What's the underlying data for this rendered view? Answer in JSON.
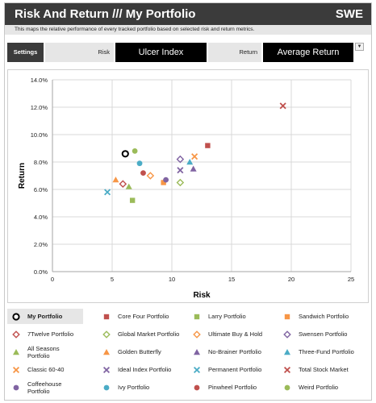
{
  "header": {
    "title": "Risk And Return /// My Portfolio",
    "region": "SWE"
  },
  "subtitle": "This maps the relative performance of every tracked portfolio based on selected risk and return metrics.",
  "controls": {
    "settings_label": "Settings",
    "risk_label": "Risk",
    "risk_value": "Ulcer Index",
    "return_label": "Return",
    "return_value": "Average Return",
    "dropdown_glyph": "▼"
  },
  "chart_data": {
    "type": "scatter",
    "xlabel": "Risk",
    "ylabel": "Return",
    "xlim": [
      0,
      25
    ],
    "ylim": [
      0,
      14
    ],
    "x_ticks": [
      0,
      5,
      10,
      15,
      20,
      25
    ],
    "x_tick_labels": [
      "0",
      "5",
      "10",
      "15",
      "20",
      "25"
    ],
    "y_ticks": [
      0,
      2,
      4,
      6,
      8,
      10,
      12,
      14
    ],
    "y_tick_labels": [
      "0.0%",
      "2.0%",
      "4.0%",
      "6.0%",
      "8.0%",
      "10.0%",
      "12.0%",
      "14.0%"
    ],
    "grid": true,
    "series": [
      {
        "name": "My Portfolio",
        "marker": "circle-open",
        "color": "#000000",
        "x": 6.1,
        "y": 8.6
      },
      {
        "name": "Core Four Portfolio",
        "marker": "square",
        "color": "#c0504d",
        "x": 13.0,
        "y": 9.2
      },
      {
        "name": "Larry Portfolio",
        "marker": "square",
        "color": "#9bbb59",
        "x": 6.7,
        "y": 5.2
      },
      {
        "name": "Sandwich Portfolio",
        "marker": "square",
        "color": "#f79646",
        "x": 9.3,
        "y": 6.5
      },
      {
        "name": "7Twelve Portfolio",
        "marker": "diamond-open",
        "color": "#c0504d",
        "x": 5.9,
        "y": 6.4
      },
      {
        "name": "Global Market Portfolio",
        "marker": "diamond-open",
        "color": "#9bbb59",
        "x": 10.7,
        "y": 6.5
      },
      {
        "name": "Ultimate Buy & Hold",
        "marker": "diamond-open",
        "color": "#f79646",
        "x": 8.2,
        "y": 7.0
      },
      {
        "name": "Swensen Portfolio",
        "marker": "diamond-open",
        "color": "#8064a2",
        "x": 10.7,
        "y": 8.2
      },
      {
        "name": "All Seasons Portfolio",
        "marker": "triangle",
        "color": "#9bbb59",
        "x": 6.4,
        "y": 6.2
      },
      {
        "name": "Golden Butterfly",
        "marker": "triangle",
        "color": "#f79646",
        "x": 5.3,
        "y": 6.7
      },
      {
        "name": "No-Brainer Portfolio",
        "marker": "triangle",
        "color": "#8064a2",
        "x": 11.8,
        "y": 7.5
      },
      {
        "name": "Three-Fund Portfolio",
        "marker": "triangle",
        "color": "#4bacc6",
        "x": 11.5,
        "y": 8.0
      },
      {
        "name": "Classic 60-40",
        "marker": "x",
        "color": "#f79646",
        "x": 11.9,
        "y": 8.4
      },
      {
        "name": "Ideal Index Portfolio",
        "marker": "x",
        "color": "#8064a2",
        "x": 10.7,
        "y": 7.4
      },
      {
        "name": "Permanent Portfolio",
        "marker": "x",
        "color": "#4bacc6",
        "x": 4.6,
        "y": 5.8
      },
      {
        "name": "Total Stock Market",
        "marker": "x",
        "color": "#c0504d",
        "x": 19.3,
        "y": 12.1
      },
      {
        "name": "Coffeehouse Portfolio",
        "marker": "circle",
        "color": "#8064a2",
        "x": 9.5,
        "y": 6.7
      },
      {
        "name": "Ivy Portfolio",
        "marker": "circle",
        "color": "#4bacc6",
        "x": 7.3,
        "y": 7.9
      },
      {
        "name": "Pinwheel Portfolio",
        "marker": "circle",
        "color": "#c0504d",
        "x": 7.6,
        "y": 7.2
      },
      {
        "name": "Weird Portfolio",
        "marker": "circle",
        "color": "#9bbb59",
        "x": 6.9,
        "y": 8.8
      }
    ]
  },
  "legend": {
    "rows": [
      [
        "My Portfolio",
        "Core Four Portfolio",
        "Larry Portfolio",
        "Sandwich Portfolio"
      ],
      [
        "7Twelve Portfolio",
        "Global Market Portfolio",
        "Ultimate Buy & Hold",
        "Swensen Portfolio"
      ],
      [
        "All Seasons Portfolio",
        "Golden Butterfly",
        "No-Brainer Portfolio",
        "Three-Fund Portfolio"
      ],
      [
        "Classic 60-40",
        "Ideal Index Portfolio",
        "Permanent Portfolio",
        "Total Stock Market"
      ],
      [
        "Coffeehouse Portfolio",
        "Ivy Portfolio",
        "Pinwheel Portfolio",
        "Weird Portfolio"
      ]
    ],
    "selected": "My Portfolio"
  }
}
